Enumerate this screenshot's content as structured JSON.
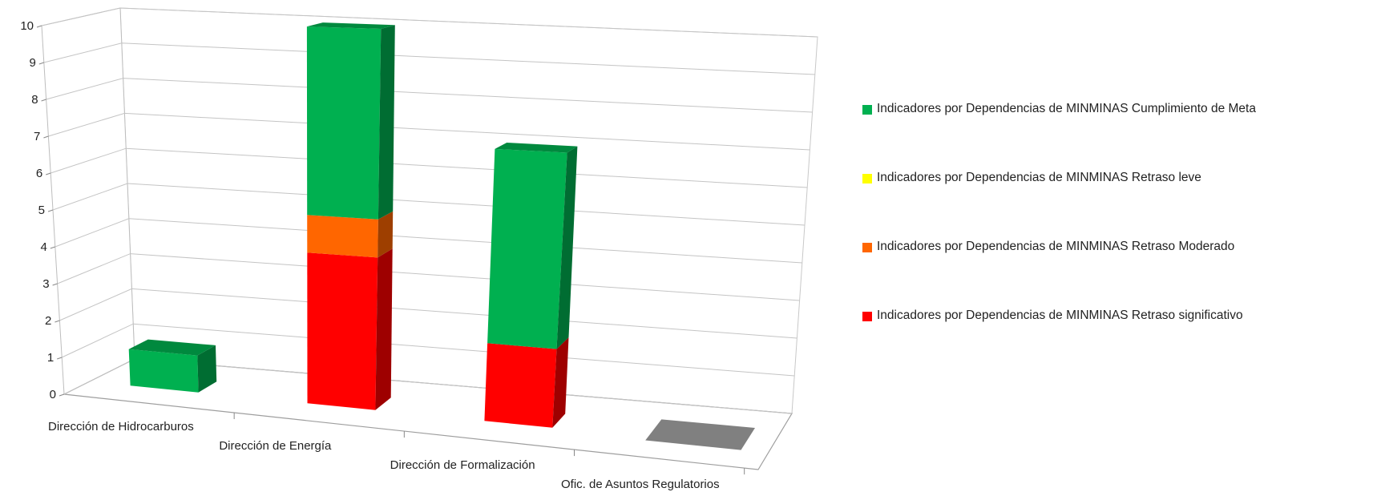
{
  "chart_data": {
    "type": "bar",
    "stacked": true,
    "three_d": true,
    "categories": [
      "Dirección de Hidrocarburos",
      "Dirección de Energía",
      "Dirección de Formalización",
      "Ofic. de Asuntos Regulatorios"
    ],
    "series": [
      {
        "name": "Indicadores  por Dependencias de MINMINAS Retraso significativo",
        "color": "#ff0000",
        "values": [
          0,
          4,
          2,
          0
        ]
      },
      {
        "name": "Indicadores  por Dependencias de MINMINAS Retraso Moderado",
        "color": "#ff6600",
        "values": [
          0,
          1,
          0,
          0
        ]
      },
      {
        "name": "Indicadores  por Dependencias de MINMINAS Retraso leve",
        "color": "#ffff00",
        "values": [
          0,
          0,
          0,
          0
        ]
      },
      {
        "name": "Indicadores  por Dependencias de MINMINAS Cumplimiento de Meta",
        "color": "#00b050",
        "values": [
          1,
          5,
          5,
          0
        ]
      }
    ],
    "empty_category_color": "#808080",
    "ylim": [
      0,
      10
    ],
    "yticks": [
      0,
      1,
      2,
      3,
      4,
      5,
      6,
      7,
      8,
      9,
      10
    ],
    "grid": true,
    "legend_position": "right",
    "legend_order": [
      "Indicadores  por Dependencias de MINMINAS Cumplimiento de Meta",
      "Indicadores  por Dependencias de MINMINAS Retraso leve",
      "Indicadores  por Dependencias de MINMINAS Retraso Moderado",
      "Indicadores  por Dependencias de MINMINAS Retraso significativo"
    ],
    "title": "",
    "xlabel": "",
    "ylabel": ""
  }
}
